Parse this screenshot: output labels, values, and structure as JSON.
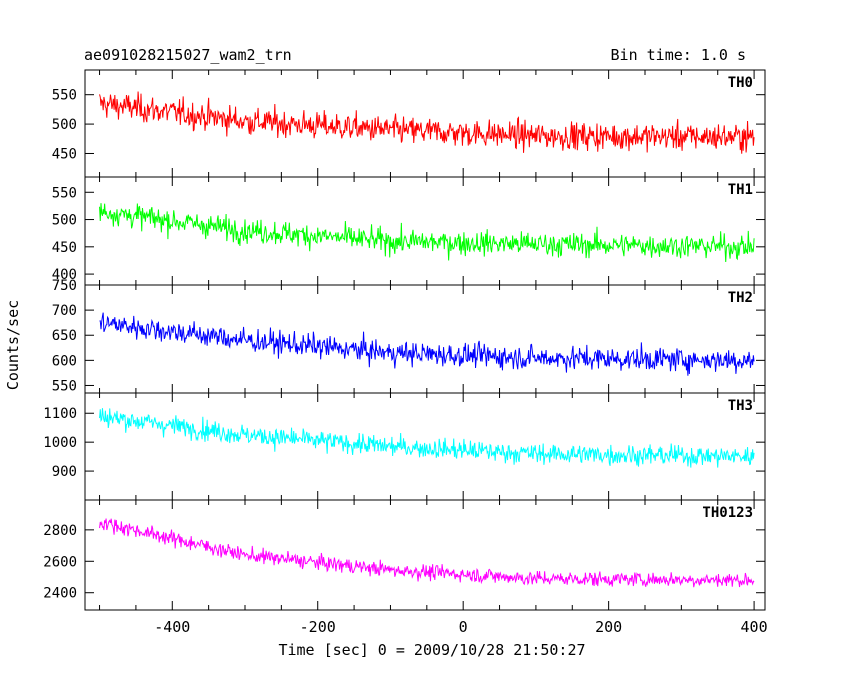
{
  "header": {
    "title": "ae091028215027_wam2_trn",
    "bin_time": "Bin time: 1.0 s"
  },
  "chart_data": [
    {
      "type": "line",
      "name": "TH0",
      "color": "#ff0000",
      "ylim": [
        410,
        592
      ],
      "yticks": [
        450,
        500,
        550
      ],
      "trend": [
        [
          -500,
          535
        ],
        [
          -300,
          505
        ],
        [
          -100,
          490
        ],
        [
          100,
          480
        ],
        [
          400,
          478
        ]
      ],
      "noise": 30
    },
    {
      "type": "line",
      "name": "TH1",
      "color": "#00ff00",
      "ylim": [
        380,
        578
      ],
      "yticks": [
        400,
        450,
        500,
        550
      ],
      "trend": [
        [
          -500,
          515
        ],
        [
          -300,
          480
        ],
        [
          -100,
          460
        ],
        [
          100,
          455
        ],
        [
          400,
          450
        ]
      ],
      "noise": 28
    },
    {
      "type": "line",
      "name": "TH2",
      "color": "#0000ff",
      "ylim": [
        535,
        750
      ],
      "yticks": [
        550,
        600,
        650,
        700,
        750
      ],
      "trend": [
        [
          -500,
          675
        ],
        [
          -300,
          640
        ],
        [
          -100,
          615
        ],
        [
          100,
          605
        ],
        [
          400,
          600
        ]
      ],
      "noise": 30
    },
    {
      "type": "line",
      "name": "TH3",
      "color": "#00ffff",
      "ylim": [
        800,
        1170
      ],
      "yticks": [
        900,
        1000,
        1100
      ],
      "trend": [
        [
          -500,
          1090
        ],
        [
          -300,
          1025
        ],
        [
          -100,
          985
        ],
        [
          100,
          960
        ],
        [
          400,
          950
        ]
      ],
      "noise": 45
    },
    {
      "type": "line",
      "name": "TH0123",
      "color": "#ff00ff",
      "ylim": [
        2290,
        2990
      ],
      "yticks": [
        2400,
        2600,
        2800
      ],
      "trend": [
        [
          -500,
          2850
        ],
        [
          -300,
          2640
        ],
        [
          -100,
          2545
        ],
        [
          100,
          2490
        ],
        [
          400,
          2480
        ]
      ],
      "noise": 60
    }
  ],
  "x_axis": {
    "xlim": [
      -520,
      415
    ],
    "ticks": [
      -400,
      -200,
      0,
      200,
      400
    ],
    "data_start": -500,
    "data_end": 400,
    "step": 1,
    "label": "Time [sec] 0 = 2009/10/28 21:50:27"
  },
  "y_axis": {
    "label": "Counts/sec"
  }
}
